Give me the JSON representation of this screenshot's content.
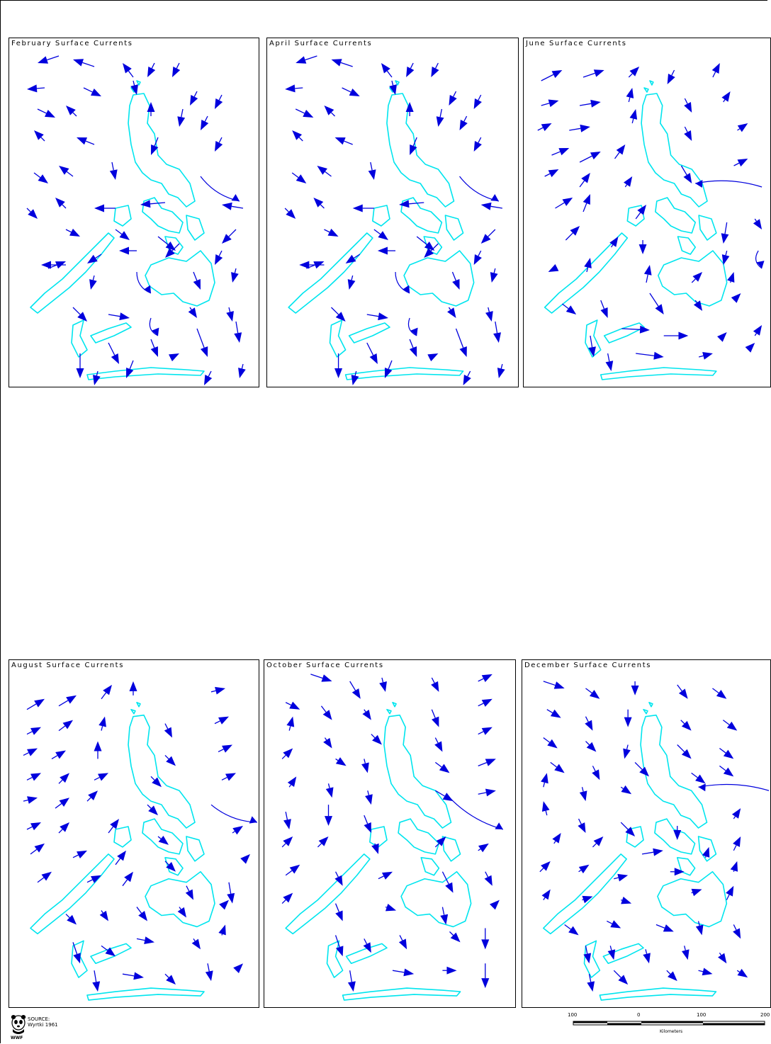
{
  "panels": [
    {
      "title": "February Surface Currents",
      "pattern": "feb"
    },
    {
      "title": "April Surface Currents",
      "pattern": "feb"
    },
    {
      "title": "June Surface Currents",
      "pattern": "jun"
    },
    {
      "title": "August Surface Currents",
      "pattern": "aug"
    },
    {
      "title": "October Surface Currents",
      "pattern": "oct"
    },
    {
      "title": "December Surface Currents",
      "pattern": "dec"
    }
  ],
  "colors": {
    "arrow": "#0000dd",
    "coast": "#00e5ee"
  },
  "footer": {
    "source_label": "SOURCE:",
    "source_value": "Wyrtki 1961",
    "logo_label": "WWF",
    "logo_icon": "panda-icon"
  },
  "scale": {
    "ticks": [
      "100",
      "0",
      "100",
      "200"
    ],
    "units": "Kilometers"
  }
}
